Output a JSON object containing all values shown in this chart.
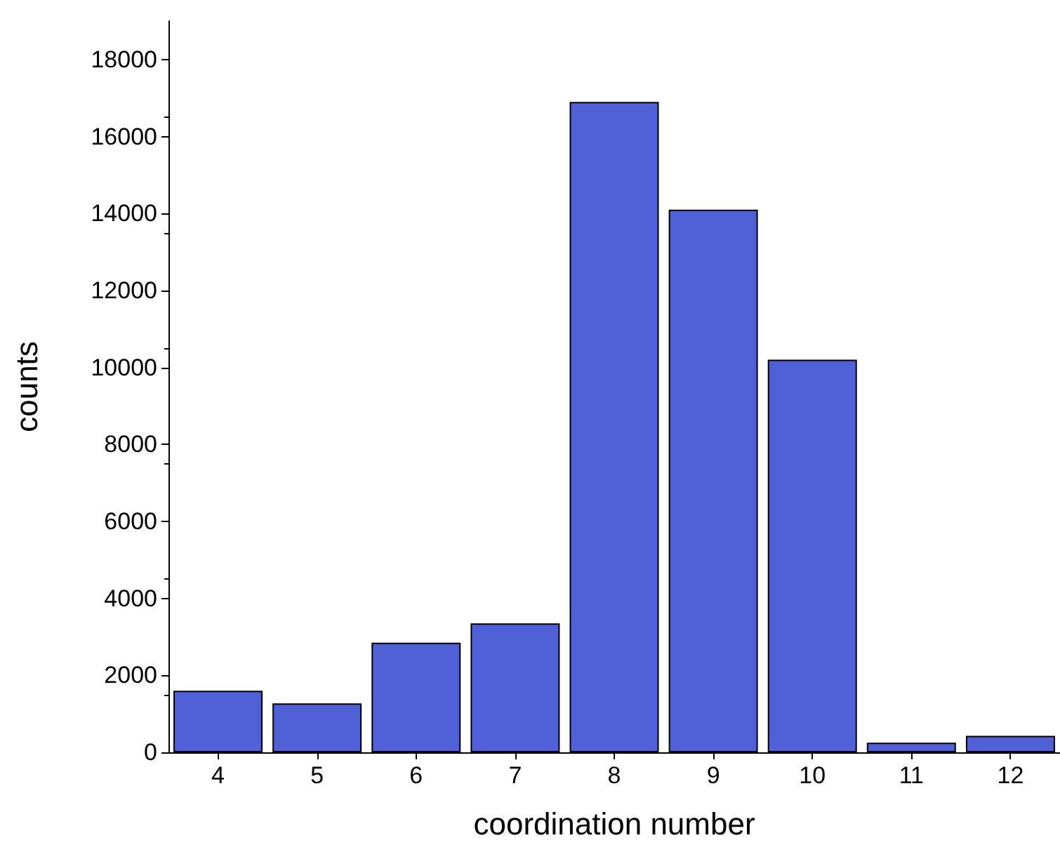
{
  "chart_data": {
    "type": "bar",
    "xlabel": "coordination number",
    "ylabel": "counts",
    "categories": [
      "4",
      "5",
      "6",
      "7",
      "8",
      "9",
      "10",
      "11",
      "12"
    ],
    "values": [
      1600,
      1270,
      2850,
      3350,
      16900,
      14100,
      10200,
      250,
      430
    ],
    "color": "#5060d6",
    "ylim": [
      0,
      19000
    ],
    "yticks": [
      0,
      2000,
      4000,
      6000,
      8000,
      10000,
      12000,
      14000,
      16000,
      18000
    ],
    "grid": false
  }
}
